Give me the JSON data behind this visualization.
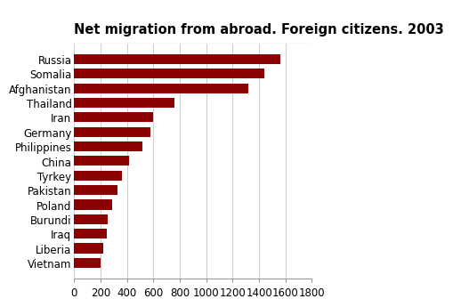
{
  "title": "Net migration from abroad. Foreign citizens. 2003",
  "categories": [
    "Vietnam",
    "Liberia",
    "Iraq",
    "Burundi",
    "Poland",
    "Pakistan",
    "Tyrkey",
    "China",
    "Philippines",
    "Germany",
    "Iran",
    "Thailand",
    "Afghanistan",
    "Somalia",
    "Russia"
  ],
  "values": [
    200,
    220,
    245,
    255,
    285,
    330,
    365,
    415,
    515,
    575,
    595,
    760,
    1320,
    1440,
    1560
  ],
  "bar_color": "#8B0000",
  "xlim": [
    0,
    1800
  ],
  "xticks": [
    0,
    200,
    400,
    600,
    800,
    1000,
    1200,
    1400,
    1600,
    1800
  ],
  "title_fontsize": 10.5,
  "tick_fontsize": 8.5,
  "label_fontsize": 8.5,
  "bg_color": "#ffffff"
}
